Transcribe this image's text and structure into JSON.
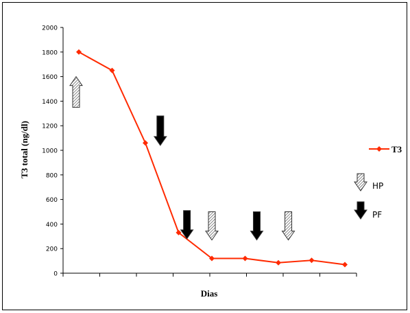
{
  "chart_data": {
    "type": "line",
    "xlabel": "Dias",
    "ylabel": "T3 total (ng/dl)",
    "ylim": [
      0,
      2000
    ],
    "yticks": [
      "0",
      "200",
      "400",
      "600",
      "800",
      "1000",
      "1200",
      "1400",
      "1600",
      "1800",
      "2000"
    ],
    "grid": false,
    "legend_position": "right",
    "series": [
      {
        "name": "T3",
        "color": "#ff2a00",
        "marker": "diamond",
        "values": [
          1800,
          1650,
          1060,
          330,
          120,
          120,
          85,
          105,
          70
        ]
      }
    ],
    "annotations": {
      "hp_legend_label": "HP",
      "pf_legend_label": "PF",
      "hp_arrows": [
        {
          "direction": "up",
          "index": 0,
          "y_top": 1600,
          "y_bottom": 1350
        },
        {
          "direction": "down",
          "index": 4,
          "y_top": 500,
          "y_bottom": 270
        },
        {
          "direction": "down",
          "index": 6.3,
          "y_top": 500,
          "y_bottom": 270
        }
      ],
      "pf_arrows": [
        {
          "direction": "down",
          "index": 2.45,
          "y_top": 1280,
          "y_bottom": 1040
        },
        {
          "direction": "down",
          "index": 3.25,
          "y_top": 510,
          "y_bottom": 280
        },
        {
          "direction": "down",
          "index": 5.35,
          "y_top": 500,
          "y_bottom": 270
        }
      ]
    }
  }
}
